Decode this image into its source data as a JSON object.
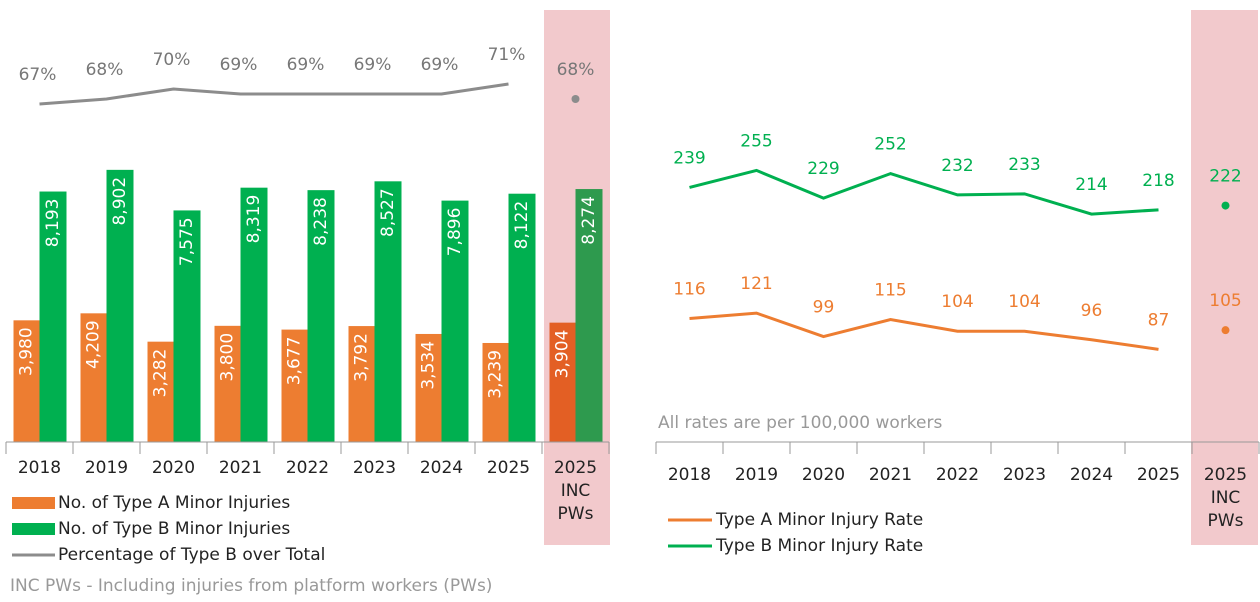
{
  "chart_data": [
    {
      "type": "bar",
      "categories": [
        "2018",
        "2019",
        "2020",
        "2021",
        "2022",
        "2023",
        "2024",
        "2025",
        "2025 INC PWs"
      ],
      "ylim": [
        0,
        14000
      ],
      "y2lim": [
        60,
        75
      ],
      "series": [
        {
          "name": "No. of Type A Minor Injuries",
          "type": "bar",
          "color": "#ed7d31",
          "highlight_color": "#e35f24",
          "values": [
            3980,
            4209,
            3282,
            3800,
            3677,
            3792,
            3534,
            3239,
            3904
          ],
          "value_labels": [
            "3,980",
            "4,209",
            "3,282",
            "3,800",
            "3,677",
            "3,792",
            "3,534",
            "3,239",
            "3,904"
          ]
        },
        {
          "name": "No. of Type B Minor Injuries",
          "type": "bar",
          "color": "#00b050",
          "highlight_color": "#2e9a4e",
          "values": [
            8193,
            8902,
            7575,
            8319,
            8238,
            8527,
            7896,
            8122,
            8274
          ],
          "value_labels": [
            "8,193",
            "8,902",
            "7,575",
            "8,319",
            "8,238",
            "8,527",
            "7,896",
            "8,122",
            "8,274"
          ]
        },
        {
          "name": "Percentage of Type B over Total",
          "type": "line",
          "axis": "y2",
          "color": "#8c8c8c",
          "values": [
            67,
            68,
            70,
            69,
            69,
            69,
            69,
            71,
            68
          ],
          "value_labels": [
            "67%",
            "68%",
            "70%",
            "69%",
            "69%",
            "69%",
            "69%",
            "71%",
            "68%"
          ]
        }
      ],
      "note": "INC PWs - Including injuries from platform workers (PWs)"
    },
    {
      "type": "line",
      "categories": [
        "2018",
        "2019",
        "2020",
        "2021",
        "2022",
        "2023",
        "2024",
        "2025",
        "2025 INC PWs"
      ],
      "ylim": [
        0,
        400
      ],
      "series": [
        {
          "name": "Type A Minor Injury Rate",
          "color": "#ed7d31",
          "values": [
            116,
            121,
            99,
            115,
            104,
            104,
            96,
            87,
            105
          ]
        },
        {
          "name": "Type B Minor Injury Rate",
          "color": "#00b050",
          "values": [
            239,
            255,
            229,
            252,
            232,
            233,
            214,
            218,
            222
          ]
        }
      ],
      "note": "All rates are per 100,000 workers"
    }
  ]
}
